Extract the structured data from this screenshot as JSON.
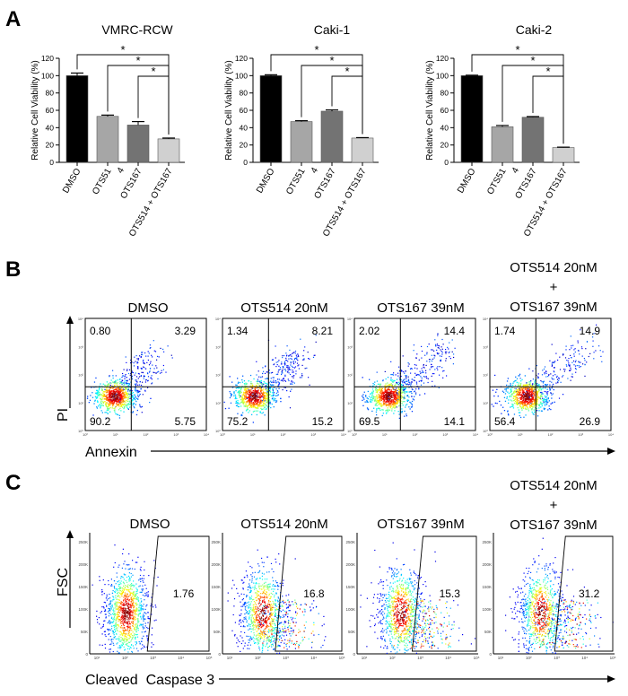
{
  "panels": {
    "A": {
      "letter": "A",
      "ylabel": "Relative Cell Viability (%)",
      "categories": [
        "DMSO",
        "OTS514",
        "OTS167",
        "OTS514 + OTS167"
      ],
      "categories_display": [
        "DMSO",
        "OTS51\n4",
        "OTS167",
        "OTS514 + OTS167"
      ],
      "significance_mark": "*",
      "bar_colors": [
        "#000000",
        "#a6a6a6",
        "#737373",
        "#d0d0d0"
      ]
    },
    "B": {
      "letter": "B",
      "ylabel": "PI",
      "xlabel": "Annexin"
    },
    "C": {
      "letter": "C",
      "ylabel": "FSC",
      "xlabel": "Cleaved  Caspase 3"
    }
  },
  "chart_data": [
    {
      "type": "bar",
      "title": "VMRC-RCW",
      "categories": [
        "DMSO",
        "OTS514",
        "OTS167",
        "OTS514 + OTS167"
      ],
      "values": [
        100,
        53,
        43,
        27
      ],
      "errors": [
        3,
        1.5,
        4,
        1
      ],
      "ylim": [
        0,
        120
      ],
      "yticks": [
        0,
        20,
        40,
        60,
        80,
        100,
        120
      ],
      "ylabel": "Relative Cell Viability (%)"
    },
    {
      "type": "bar",
      "title": "Caki-1",
      "categories": [
        "DMSO",
        "OTS514",
        "OTS167",
        "OTS514 + OTS167"
      ],
      "values": [
        100,
        47,
        59,
        28
      ],
      "errors": [
        1,
        1,
        1.5,
        0.5
      ],
      "ylim": [
        0,
        120
      ],
      "yticks": [
        0,
        20,
        40,
        60,
        80,
        100,
        120
      ],
      "ylabel": "Relative Cell Viability (%)"
    },
    {
      "type": "bar",
      "title": "Caki-2",
      "categories": [
        "DMSO",
        "OTS514",
        "OTS167",
        "OTS514 + OTS167"
      ],
      "values": [
        100,
        41,
        52,
        17
      ],
      "errors": [
        0.5,
        1.5,
        0.8,
        0.5
      ],
      "ylim": [
        0,
        120
      ],
      "yticks": [
        0,
        20,
        40,
        60,
        80,
        100,
        120
      ],
      "ylabel": "Relative Cell Viability (%)"
    },
    {
      "type": "scatter",
      "subtype": "flow-cytometry-quadrant",
      "xlabel": "Annexin",
      "ylabel": "PI",
      "axis_ticks": [
        "10⁰",
        "10¹",
        "10²",
        "10³",
        "10⁴"
      ],
      "plots": [
        {
          "title": "DMSO",
          "quadrants": {
            "upper_left": "0.80",
            "upper_right": "3.29",
            "lower_left": "90.2",
            "lower_right": "5.75"
          }
        },
        {
          "title": "OTS514 20nM",
          "quadrants": {
            "upper_left": "1.34",
            "upper_right": "8.21",
            "lower_left": "75.2",
            "lower_right": "15.2"
          }
        },
        {
          "title": "OTS167 39nM",
          "quadrants": {
            "upper_left": "2.02",
            "upper_right": "14.4",
            "lower_left": "69.5",
            "lower_right": "14.1"
          }
        },
        {
          "title": "OTS514 20nM\n+\nOTS167 39nM",
          "quadrants": {
            "upper_left": "1.74",
            "upper_right": "14.9",
            "lower_left": "56.4",
            "lower_right": "26.9"
          }
        }
      ]
    },
    {
      "type": "scatter",
      "subtype": "flow-cytometry-gate",
      "xlabel": "Cleaved  Caspase 3",
      "ylabel": "FSC",
      "y_ticks": [
        "0",
        "50K",
        "100K",
        "150K",
        "200K",
        "250K"
      ],
      "x_ticks": [
        "10¹",
        "10²",
        "10³",
        "10⁴",
        "10⁵"
      ],
      "plots": [
        {
          "title": "DMSO",
          "gate_value": "1.76"
        },
        {
          "title": "OTS514 20nM",
          "gate_value": "16.8"
        },
        {
          "title": "OTS167 39nM",
          "gate_value": "15.3"
        },
        {
          "title": "OTS514 20nM\n+\nOTS167 39nM",
          "gate_value": "31.2"
        }
      ]
    }
  ]
}
